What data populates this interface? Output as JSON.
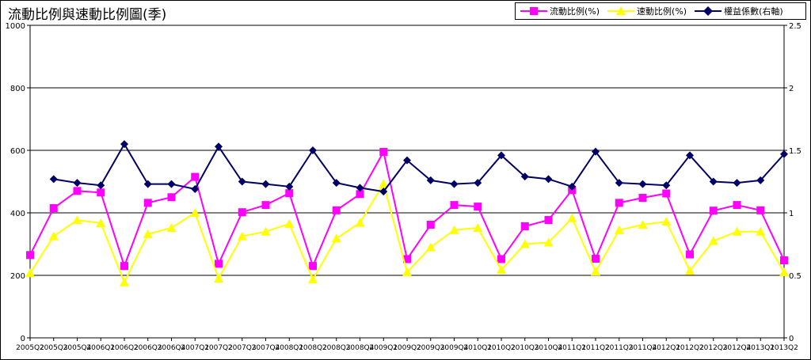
{
  "title": "流動比例與速動比例圖(季)",
  "chart_data": {
    "type": "line",
    "title": "流動比例與速動比例圖(季)",
    "x": [
      "2005Q2",
      "2005Q3",
      "2005Q4",
      "2006Q1",
      "2006Q2",
      "2006Q3",
      "2006Q4",
      "2007Q1",
      "2007Q2",
      "2007Q3",
      "2007Q4",
      "2008Q1",
      "2008Q2",
      "2008Q3",
      "2008Q4",
      "2009Q1",
      "2009Q2",
      "2009Q3",
      "2009Q4",
      "2010Q1",
      "2010Q2",
      "2010Q3",
      "2010Q4",
      "2011Q1",
      "2011Q2",
      "2011Q3",
      "2011Q4",
      "2012Q1",
      "2012Q2",
      "2012Q3",
      "2012Q4",
      "2013Q1",
      "2013Q2"
    ],
    "x_tick_labels": [
      "2005Q2",
      "2005Q3",
      "2005Q4",
      "2006Q1",
      "2006Q2",
      "2006Q3",
      "2006Q4",
      "2007Q1",
      "2007Q2",
      "2007Q3",
      "2007Q4",
      "2008Q1",
      "2008Q2",
      "2008Q3",
      "2008Q4",
      "2009Q1",
      "2009Q2",
      "2009Q3",
      "2009Q4",
      "2010Q1",
      "2010Q2",
      "2010Q3",
      "2010Q4",
      "2011Q1",
      "2011Q2",
      "2011Q3",
      "2011Q4",
      "2012Q1",
      "2012Q2",
      "2012Q3",
      "2012Q4",
      "2013Q1",
      "2013Q2"
    ],
    "y_left_ticks": [
      "0",
      "200",
      "400",
      "600",
      "800",
      "1000"
    ],
    "y_right_ticks": [
      "0",
      "0.5",
      "1",
      "1.5",
      "2",
      "2.5"
    ],
    "ylim_left": [
      0,
      1000
    ],
    "ylim_right": [
      0,
      2.5
    ],
    "grid": "horizontal",
    "legend_position": "top-right",
    "series": [
      {
        "name": "流動比例(%)",
        "axis": "left",
        "color": "#ff00ff",
        "marker": "square",
        "values": [
          265,
          415,
          470,
          465,
          230,
          432,
          450,
          515,
          237,
          402,
          425,
          463,
          230,
          408,
          460,
          595,
          252,
          362,
          425,
          420,
          252,
          357,
          377,
          473,
          253,
          432,
          448,
          462,
          267,
          407,
          425,
          408,
          248
        ]
      },
      {
        "name": "速動比例(%)",
        "axis": "left",
        "color": "#ffff00",
        "marker": "triangle",
        "values": [
          207,
          325,
          377,
          367,
          178,
          332,
          352,
          400,
          190,
          325,
          340,
          365,
          187,
          318,
          368,
          493,
          210,
          290,
          345,
          352,
          218,
          300,
          305,
          383,
          212,
          345,
          362,
          372,
          215,
          310,
          340,
          340,
          210
        ]
      },
      {
        "name": "權益係數(右軸)",
        "axis": "right",
        "color": "#000066",
        "marker": "diamond",
        "values": [
          null,
          1.27,
          1.24,
          1.22,
          1.55,
          1.23,
          1.23,
          1.19,
          1.53,
          1.25,
          1.23,
          1.21,
          1.5,
          1.24,
          1.2,
          1.17,
          1.42,
          1.26,
          1.23,
          1.24,
          1.46,
          1.29,
          1.27,
          1.21,
          1.49,
          1.24,
          1.23,
          1.22,
          1.46,
          1.25,
          1.24,
          1.26,
          1.47
        ]
      }
    ]
  }
}
